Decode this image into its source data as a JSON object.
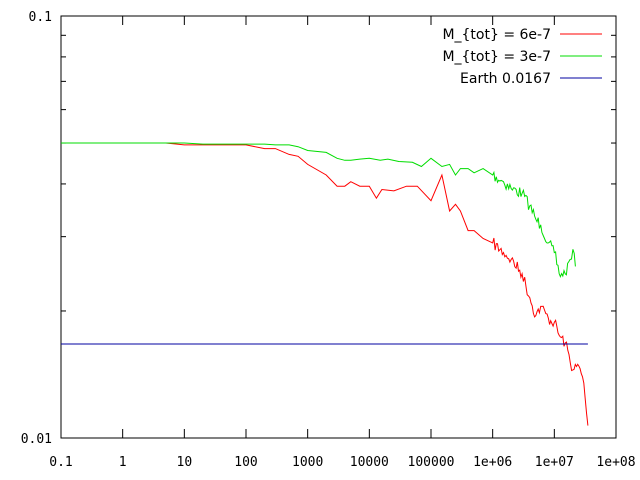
{
  "chart_data": {
    "type": "line",
    "title": "",
    "xlabel": "",
    "ylabel": "",
    "x_scale": "log",
    "y_scale": "log",
    "xlim": [
      0.1,
      100000000
    ],
    "ylim": [
      0.01,
      0.1
    ],
    "grid": false,
    "legend_position": "top-right",
    "x_tick_labels": [
      "0.1",
      "1",
      "10",
      "100",
      "1000",
      "10000",
      "100000",
      "1e+06",
      "1e+07",
      "1e+08"
    ],
    "x_tick_values": [
      0.1,
      1,
      10,
      100,
      1000,
      10000,
      100000,
      1000000,
      10000000,
      100000000
    ],
    "y_tick_labels": [
      "0.01",
      "0.1"
    ],
    "y_tick_values": [
      0.01,
      0.1
    ],
    "series": [
      {
        "name": "M_{tot} = 6e-7",
        "color": "#ff0000",
        "x": [
          0.1,
          1,
          5,
          10,
          20,
          50,
          100,
          200,
          300,
          500,
          700,
          1000,
          2000,
          3000,
          4000,
          5000,
          7000,
          10000,
          13000,
          16000,
          25000,
          40000,
          60000,
          100000,
          150000,
          200000,
          250000,
          300000,
          400000,
          500000,
          700000,
          1000000,
          1500000,
          2000000,
          3000000,
          4000000,
          5000000,
          6000000,
          8000000,
          10000000,
          12000000,
          15000000,
          20000000,
          25000000,
          30000000,
          35000000
        ],
        "y": [
          0.05,
          0.05,
          0.05,
          0.0495,
          0.0495,
          0.0495,
          0.0495,
          0.0485,
          0.0485,
          0.047,
          0.0465,
          0.0445,
          0.042,
          0.0395,
          0.0395,
          0.0405,
          0.0395,
          0.0395,
          0.037,
          0.0388,
          0.0385,
          0.0395,
          0.0395,
          0.0365,
          0.042,
          0.0345,
          0.0358,
          0.0345,
          0.031,
          0.031,
          0.0297,
          0.029,
          0.0275,
          0.0265,
          0.0245,
          0.0215,
          0.0195,
          0.0205,
          0.0192,
          0.0188,
          0.0175,
          0.0168,
          0.0145,
          0.0148,
          0.0135,
          0.0107
        ]
      },
      {
        "name": "M_{tot} = 3e-7",
        "color": "#00dd00",
        "x": [
          0.1,
          1,
          5,
          10,
          20,
          50,
          100,
          200,
          300,
          500,
          700,
          1000,
          2000,
          3000,
          4000,
          5000,
          7000,
          10000,
          15000,
          20000,
          30000,
          50000,
          70000,
          100000,
          150000,
          200000,
          250000,
          300000,
          400000,
          500000,
          700000,
          1000000,
          1500000,
          2000000,
          3000000,
          4000000,
          5000000,
          6000000,
          8000000,
          10000000,
          12000000,
          15000000,
          18000000,
          20000000,
          22000000
        ],
        "y": [
          0.05,
          0.05,
          0.05,
          0.05,
          0.0497,
          0.0497,
          0.0497,
          0.0497,
          0.0495,
          0.0495,
          0.049,
          0.048,
          0.0475,
          0.046,
          0.0455,
          0.0455,
          0.0458,
          0.046,
          0.0455,
          0.0458,
          0.0452,
          0.045,
          0.044,
          0.046,
          0.044,
          0.0445,
          0.042,
          0.0435,
          0.0435,
          0.0425,
          0.0435,
          0.042,
          0.0405,
          0.039,
          0.038,
          0.0355,
          0.033,
          0.032,
          0.029,
          0.0275,
          0.0245,
          0.0245,
          0.0265,
          0.028,
          0.0255
        ]
      },
      {
        "name": "Earth 0.0167",
        "color": "#0000a0",
        "x": [
          0.1,
          35000000
        ],
        "y": [
          0.0167,
          0.0167
        ]
      }
    ]
  }
}
